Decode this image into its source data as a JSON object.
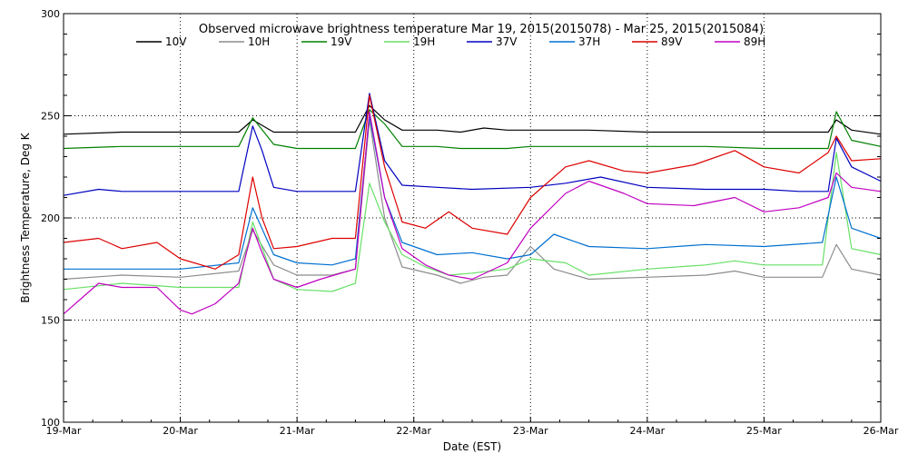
{
  "chart_data": {
    "type": "line",
    "title": "Observed microwave brightness temperature Mar 19, 2015(2015078) - Mar 25, 2015(2015084)",
    "xlabel": "Date (EST)",
    "ylabel": "Brightness Temperature, Deg K",
    "xlim": [
      0,
      7
    ],
    "ylim": [
      100,
      300
    ],
    "x_ticks": [
      {
        "pos": 0,
        "label": "19-Mar"
      },
      {
        "pos": 1,
        "label": "20-Mar"
      },
      {
        "pos": 2,
        "label": "21-Mar"
      },
      {
        "pos": 3,
        "label": "22-Mar"
      },
      {
        "pos": 4,
        "label": "23-Mar"
      },
      {
        "pos": 5,
        "label": "24-Mar"
      },
      {
        "pos": 6,
        "label": "25-Mar"
      },
      {
        "pos": 7,
        "label": "26-Mar"
      }
    ],
    "y_ticks": [
      100,
      150,
      200,
      250,
      300
    ],
    "grid": "dotted",
    "legend": "top",
    "series": [
      {
        "name": "10V",
        "color": "#000000",
        "x": [
          0,
          0.5,
          1.0,
          1.5,
          1.62,
          1.8,
          2.0,
          2.5,
          2.62,
          2.75,
          2.9,
          3.2,
          3.4,
          3.6,
          3.8,
          4.0,
          4.5,
          5.0,
          5.5,
          6.0,
          6.3,
          6.55,
          6.62,
          6.75,
          7.0
        ],
        "y": [
          241,
          242,
          242,
          242,
          248,
          242,
          242,
          242,
          255,
          248,
          243,
          243,
          242,
          244,
          243,
          243,
          243,
          242,
          242,
          242,
          242,
          242,
          248,
          243,
          241
        ]
      },
      {
        "name": "10H",
        "color": "#8c8c8c",
        "x": [
          0,
          0.5,
          1.0,
          1.5,
          1.62,
          1.8,
          2.0,
          2.3,
          2.5,
          2.62,
          2.75,
          2.9,
          3.2,
          3.4,
          3.6,
          3.8,
          4.0,
          4.2,
          4.5,
          5.0,
          5.5,
          5.75,
          6.0,
          6.5,
          6.62,
          6.75,
          7.0
        ],
        "y": [
          170,
          172,
          171,
          174,
          194,
          177,
          172,
          172,
          175,
          248,
          200,
          176,
          172,
          168,
          171,
          172,
          186,
          175,
          170,
          171,
          172,
          174,
          171,
          171,
          187,
          175,
          172
        ]
      },
      {
        "name": "19V",
        "color": "#008000",
        "x": [
          0,
          0.5,
          1.0,
          1.5,
          1.62,
          1.8,
          2.0,
          2.5,
          2.62,
          2.75,
          2.9,
          3.2,
          3.4,
          3.6,
          3.8,
          4.0,
          4.5,
          5.0,
          5.5,
          6.0,
          6.3,
          6.55,
          6.62,
          6.75,
          7.0
        ],
        "y": [
          234,
          235,
          235,
          235,
          249,
          236,
          234,
          234,
          253,
          246,
          235,
          235,
          234,
          234,
          234,
          235,
          235,
          235,
          235,
          234,
          234,
          234,
          252,
          238,
          235
        ]
      },
      {
        "name": "19H",
        "color": "#66e066",
        "x": [
          0,
          0.5,
          1.0,
          1.5,
          1.62,
          1.8,
          2.0,
          2.3,
          2.5,
          2.62,
          2.75,
          2.9,
          3.1,
          3.3,
          3.5,
          3.8,
          4.0,
          4.3,
          4.5,
          5.0,
          5.5,
          5.75,
          6.0,
          6.5,
          6.62,
          6.75,
          7.0
        ],
        "y": [
          165,
          168,
          166,
          166,
          198,
          170,
          165,
          164,
          168,
          217,
          198,
          182,
          176,
          172,
          173,
          175,
          180,
          178,
          172,
          175,
          177,
          179,
          177,
          177,
          232,
          185,
          182
        ]
      },
      {
        "name": "37V",
        "color": "#0000c0",
        "x": [
          0,
          0.3,
          0.5,
          1.0,
          1.5,
          1.62,
          1.7,
          1.8,
          2.0,
          2.5,
          2.62,
          2.75,
          2.9,
          3.2,
          3.5,
          4.0,
          4.3,
          4.6,
          5.0,
          5.5,
          6.0,
          6.3,
          6.55,
          6.62,
          6.75,
          7.0
        ],
        "y": [
          211,
          214,
          213,
          213,
          213,
          245,
          233,
          215,
          213,
          213,
          261,
          228,
          216,
          215,
          214,
          215,
          217,
          220,
          215,
          214,
          214,
          213,
          213,
          239,
          225,
          218
        ]
      },
      {
        "name": "37H",
        "color": "#0070d0",
        "x": [
          0,
          0.5,
          1.0,
          1.5,
          1.62,
          1.8,
          2.0,
          2.3,
          2.5,
          2.62,
          2.75,
          2.9,
          3.2,
          3.5,
          3.8,
          4.0,
          4.2,
          4.5,
          5.0,
          5.5,
          6.0,
          6.5,
          6.62,
          6.75,
          7.0
        ],
        "y": [
          175,
          175,
          175,
          178,
          205,
          182,
          178,
          177,
          180,
          250,
          210,
          188,
          182,
          183,
          180,
          182,
          192,
          186,
          185,
          187,
          186,
          188,
          220,
          195,
          190
        ]
      },
      {
        "name": "89V",
        "color": "#dd0000",
        "x": [
          0,
          0.3,
          0.5,
          0.8,
          1.0,
          1.3,
          1.5,
          1.62,
          1.7,
          1.8,
          2.0,
          2.3,
          2.5,
          2.62,
          2.75,
          2.9,
          3.1,
          3.3,
          3.5,
          3.8,
          4.0,
          4.3,
          4.5,
          4.8,
          5.0,
          5.4,
          5.75,
          6.0,
          6.3,
          6.55,
          6.62,
          6.75,
          7.0
        ],
        "y": [
          188,
          190,
          185,
          188,
          180,
          175,
          182,
          220,
          200,
          185,
          186,
          190,
          190,
          260,
          225,
          198,
          195,
          203,
          195,
          192,
          210,
          225,
          228,
          223,
          222,
          226,
          233,
          225,
          222,
          232,
          240,
          228,
          229
        ]
      },
      {
        "name": "89H",
        "color": "#c000c0",
        "x": [
          0,
          0.3,
          0.5,
          0.8,
          1.0,
          1.1,
          1.3,
          1.5,
          1.62,
          1.7,
          1.8,
          2.0,
          2.2,
          2.5,
          2.62,
          2.75,
          2.9,
          3.1,
          3.3,
          3.5,
          3.8,
          4.0,
          4.3,
          4.5,
          4.8,
          5.0,
          5.4,
          5.75,
          6.0,
          6.3,
          6.55,
          6.62,
          6.75,
          7.0
        ],
        "y": [
          153,
          168,
          166,
          166,
          155,
          153,
          158,
          168,
          195,
          183,
          170,
          166,
          170,
          175,
          252,
          210,
          185,
          177,
          172,
          170,
          178,
          195,
          212,
          218,
          212,
          207,
          206,
          210,
          203,
          205,
          210,
          222,
          215,
          213
        ]
      }
    ]
  }
}
